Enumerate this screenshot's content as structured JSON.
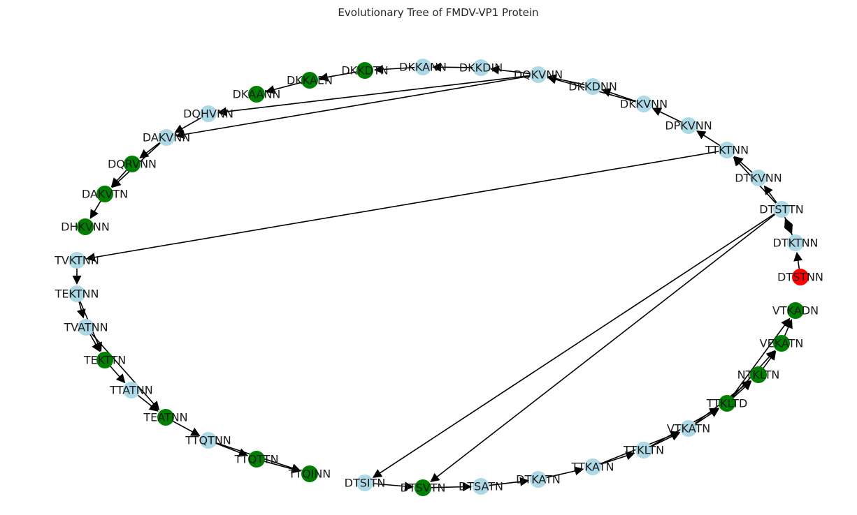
{
  "title": "Evolutionary Tree of FMDV-VP1 Protein",
  "colors": {
    "default": "#add8e6",
    "highlight": "#008000",
    "root": "#ff0000",
    "edge": "#000000"
  },
  "nodes": [
    {
      "id": "DTSTNN",
      "color": "root"
    },
    {
      "id": "DTKTNN",
      "color": "default"
    },
    {
      "id": "DTSTTN",
      "color": "default"
    },
    {
      "id": "DTKVNN",
      "color": "default"
    },
    {
      "id": "TTKTNN",
      "color": "default"
    },
    {
      "id": "DPKVNN",
      "color": "default"
    },
    {
      "id": "DKKVNN",
      "color": "default"
    },
    {
      "id": "DKKDNN",
      "color": "default"
    },
    {
      "id": "DQKVNN",
      "color": "default"
    },
    {
      "id": "DKKDIN",
      "color": "default"
    },
    {
      "id": "DKKANN",
      "color": "default"
    },
    {
      "id": "DKKDTN",
      "color": "highlight"
    },
    {
      "id": "DKKAEN",
      "color": "highlight"
    },
    {
      "id": "DKAANN",
      "color": "highlight"
    },
    {
      "id": "DQHVNN",
      "color": "default"
    },
    {
      "id": "DAKVNN",
      "color": "default"
    },
    {
      "id": "DQRVNN",
      "color": "highlight"
    },
    {
      "id": "DAKVTN",
      "color": "highlight"
    },
    {
      "id": "DHKVNN",
      "color": "highlight"
    },
    {
      "id": "TVKTNN",
      "color": "default"
    },
    {
      "id": "TEKTNN",
      "color": "default"
    },
    {
      "id": "TVATNN",
      "color": "default"
    },
    {
      "id": "TEKTTN",
      "color": "highlight"
    },
    {
      "id": "TTATNN",
      "color": "default"
    },
    {
      "id": "TEATNN",
      "color": "highlight"
    },
    {
      "id": "TTQTNN",
      "color": "default"
    },
    {
      "id": "TTQTTN",
      "color": "highlight"
    },
    {
      "id": "TTQINN",
      "color": "highlight"
    },
    {
      "id": "DTSITN",
      "color": "default"
    },
    {
      "id": "DTSVTN",
      "color": "highlight"
    },
    {
      "id": "DTSATN",
      "color": "default"
    },
    {
      "id": "DTKATN",
      "color": "default"
    },
    {
      "id": "TTKATN",
      "color": "default"
    },
    {
      "id": "TTKLTN",
      "color": "default"
    },
    {
      "id": "VTKATN",
      "color": "default"
    },
    {
      "id": "TTKLTD",
      "color": "highlight"
    },
    {
      "id": "NTKLTN",
      "color": "highlight"
    },
    {
      "id": "VEKATN",
      "color": "highlight"
    },
    {
      "id": "VTKADN",
      "color": "highlight"
    }
  ],
  "edges": [
    [
      "DTSTNN",
      "DTKTNN"
    ],
    [
      "DTKTNN",
      "DTSTTN"
    ],
    [
      "DTSTTN",
      "DTKTNN"
    ],
    [
      "DTSTTN",
      "DTKVNN"
    ],
    [
      "DTKVNN",
      "TTKTNN"
    ],
    [
      "DTSTTN",
      "TTKTNN"
    ],
    [
      "TTKTNN",
      "DPKVNN"
    ],
    [
      "DPKVNN",
      "DKKVNN"
    ],
    [
      "DKKVNN",
      "DKKDNN"
    ],
    [
      "DKKVNN",
      "DQKVNN"
    ],
    [
      "DKKDNN",
      "DQKVNN"
    ],
    [
      "DQKVNN",
      "DKKDIN"
    ],
    [
      "DKKDIN",
      "DKKANN"
    ],
    [
      "DKKANN",
      "DKKDTN"
    ],
    [
      "DKKDTN",
      "DKKAEN"
    ],
    [
      "DKKAEN",
      "DKAANN"
    ],
    [
      "DQKVNN",
      "DQHVNN"
    ],
    [
      "DQKVNN",
      "DAKVNN"
    ],
    [
      "DQHVNN",
      "DAKVNN"
    ],
    [
      "DAKVNN",
      "DQRVNN"
    ],
    [
      "DQRVNN",
      "DAKVTN"
    ],
    [
      "DAKVNN",
      "DAKVTN"
    ],
    [
      "DAKVTN",
      "DHKVNN"
    ],
    [
      "TTKTNN",
      "TVKTNN"
    ],
    [
      "TVKTNN",
      "TEKTNN"
    ],
    [
      "TEKTNN",
      "TVATNN"
    ],
    [
      "TVATNN",
      "TEKTTN"
    ],
    [
      "TEKTNN",
      "TEKTTN"
    ],
    [
      "TEKTTN",
      "TTATNN"
    ],
    [
      "TVATNN",
      "TEATNN"
    ],
    [
      "TTATNN",
      "TEATNN"
    ],
    [
      "TEATNN",
      "TTQTNN"
    ],
    [
      "TTQTNN",
      "TTQTTN"
    ],
    [
      "TTQTTN",
      "TTQINN"
    ],
    [
      "TTQTNN",
      "TTQINN"
    ],
    [
      "DTSTTN",
      "DTSITN"
    ],
    [
      "DTSTTN",
      "DTSVTN"
    ],
    [
      "DTSITN",
      "DTSVTN"
    ],
    [
      "DTSVTN",
      "DTSATN"
    ],
    [
      "DTSATN",
      "DTKATN"
    ],
    [
      "DTKATN",
      "TTKATN"
    ],
    [
      "TTKATN",
      "TTKLTN"
    ],
    [
      "TTKLTN",
      "VTKATN"
    ],
    [
      "TTKATN",
      "VTKATN"
    ],
    [
      "VTKATN",
      "TTKLTD"
    ],
    [
      "TTKLTN",
      "TTKLTD"
    ],
    [
      "TTKLTD",
      "NTKLTN"
    ],
    [
      "VTKATN",
      "NTKLTN"
    ],
    [
      "NTKLTN",
      "VEKATN"
    ],
    [
      "TTKLTD",
      "VEKATN"
    ],
    [
      "VEKATN",
      "VTKADN"
    ],
    [
      "TTKLTD",
      "VTKADN"
    ]
  ]
}
